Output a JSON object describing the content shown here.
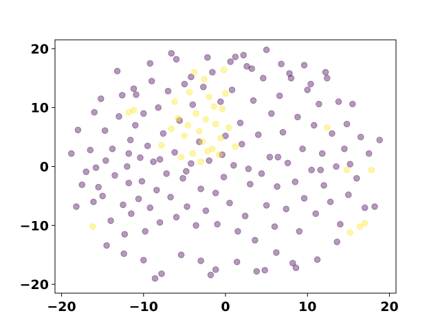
{
  "chart_data": {
    "type": "scatter",
    "title": "",
    "xlabel": "",
    "ylabel": "",
    "xlim": [
      -20.8,
      20.8
    ],
    "ylim": [
      -21.5,
      21.5
    ],
    "xticks": [
      -20,
      -10,
      0,
      10,
      20
    ],
    "yticks": [
      -20,
      -10,
      0,
      10,
      20
    ],
    "xtick_labels": [
      "−20",
      "−10",
      "0",
      "10",
      "20"
    ],
    "ytick_labels": [
      "−20",
      "−10",
      "0",
      "10",
      "20"
    ],
    "grid": false,
    "legend": "none",
    "marker_alpha": 0.4,
    "colors": {
      "class_0": "#440154",
      "class_1": "#fde725"
    },
    "series": [
      {
        "color_key": "class_0",
        "x": [
          -18.8,
          -18.2,
          -18.0,
          -17.5,
          -17.0,
          -16.5,
          -16.1,
          -16.0,
          -15.5,
          -15.2,
          -15.0,
          -14.7,
          -14.6,
          -14.0,
          -13.8,
          -13.5,
          -13.0,
          -12.6,
          -12.5,
          -12.3,
          -12.0,
          -11.8,
          -11.6,
          -11.5,
          -11.0,
          -10.9,
          -10.6,
          -10.4,
          -10.2,
          -10.0,
          -9.8,
          -9.5,
          -9.2,
          -9.0,
          -8.8,
          -8.4,
          -8.2,
          -8.0,
          -7.6,
          -7.2,
          -7.0,
          -6.7,
          -6.2,
          -6.0,
          -5.6,
          -5.2,
          -5.0,
          -4.7,
          -4.2,
          -4.0,
          -3.6,
          -3.2,
          -3.0,
          -2.7,
          -2.4,
          -2.0,
          -1.6,
          -1.2,
          -1.0,
          -0.6,
          -0.2,
          0.0,
          0.5,
          0.8,
          1.0,
          1.5,
          1.8,
          2.0,
          2.4,
          2.6,
          3.0,
          3.4,
          3.6,
          4.0,
          4.4,
          4.6,
          5.0,
          5.4,
          5.6,
          6.0,
          6.3,
          6.6,
          7.0,
          7.4,
          7.6,
          8.0,
          8.5,
          8.8,
          9.0,
          9.4,
          9.6,
          10.0,
          10.5,
          10.8,
          11.0,
          11.4,
          11.8,
          12.0,
          12.4,
          12.8,
          13.0,
          13.5,
          13.8,
          14.0,
          14.5,
          14.8,
          15.0,
          15.5,
          16.0,
          16.5,
          17.0,
          17.5,
          18.2,
          18.8,
          -14.5,
          -12.4,
          -10.0,
          -7.8,
          -5.4,
          -3.0,
          -1.2,
          1.4,
          3.8,
          6.2,
          8.6,
          11.2,
          13.6,
          -13.2,
          -9.2,
          -6.0,
          -2.2,
          2.2,
          5.0,
          9.6,
          12.2,
          -11.2,
          -4.2,
          0.6,
          3.2,
          7.8,
          10.4,
          -8.6,
          -1.8,
          4.8,
          8.2,
          -6.6,
          1.2,
          6.8,
          -15.8,
          -11.8,
          -8.0,
          -4.8,
          -0.4,
          2.8,
          6.4,
          11.6,
          15.2
        ],
        "y": [
          2.2,
          -6.8,
          6.2,
          -3.1,
          -0.9,
          2.8,
          -6.0,
          9.2,
          -3.5,
          11.5,
          -5.0,
          6.1,
          1.0,
          -9.2,
          3.0,
          -1.5,
          8.5,
          12.1,
          -6.5,
          -11.5,
          0.0,
          -2.8,
          4.5,
          -8.0,
          7.0,
          12.2,
          -5.5,
          1.5,
          -2.5,
          9.0,
          -11.0,
          3.5,
          -7.0,
          14.5,
          0.8,
          -4.0,
          10.0,
          -9.5,
          5.6,
          -1.2,
          12.8,
          -5.2,
          2.4,
          -8.6,
          7.8,
          -2.0,
          14.0,
          -6.8,
          0.5,
          10.5,
          -10.0,
          4.2,
          -3.8,
          13.5,
          -7.5,
          1.0,
          16.0,
          -4.5,
          -9.8,
          11.0,
          -1.8,
          5.2,
          -6.2,
          13.0,
          0.2,
          -11.0,
          7.4,
          3.8,
          -8.4,
          17.0,
          -3.0,
          11.2,
          -12.5,
          5.4,
          -1.2,
          15.0,
          -6.6,
          1.6,
          9.0,
          -10.2,
          -3.4,
          12.0,
          5.8,
          -7.2,
          0.6,
          15.0,
          -2.6,
          8.4,
          -11.0,
          3.0,
          -5.4,
          13.0,
          -0.6,
          7.0,
          -8.0,
          10.6,
          2.2,
          -3.2,
          15.0,
          -6.0,
          5.6,
          0.0,
          11.0,
          -9.8,
          3.0,
          7.2,
          -4.8,
          10.6,
          -2.0,
          5.0,
          -7.0,
          2.2,
          -6.8,
          4.5,
          -13.4,
          -14.8,
          -15.9,
          -18.2,
          -15.0,
          -16.0,
          -17.5,
          -16.2,
          -17.8,
          -14.6,
          -17.2,
          -15.8,
          -12.8,
          16.2,
          17.5,
          18.2,
          18.5,
          18.9,
          19.8,
          17.2,
          16.0,
          13.2,
          15.2,
          17.8,
          16.6,
          15.8,
          14.0,
          -19.0,
          -18.4,
          -17.6,
          -16.4,
          19.2,
          18.6,
          17.4,
          -0.2,
          2.2,
          1.2,
          -0.8,
          2.0,
          -0.4,
          1.6,
          -0.6,
          0.4
        ]
      },
      {
        "color_key": "class_1",
        "x": [
          -16.2,
          -11.8,
          -11.2,
          -7.8,
          -6.6,
          -5.8,
          -5.0,
          -4.6,
          -4.0,
          -3.6,
          -3.2,
          -2.8,
          -2.4,
          -2.0,
          -1.6,
          -1.2,
          -0.8,
          -0.4,
          0.0,
          -0.2,
          -3.8,
          -2.6,
          -1.4,
          -4.4,
          -6.2,
          -5.4,
          -3.0,
          -2.2,
          -0.6,
          0.4,
          1.2,
          12.4,
          14.8,
          15.2,
          16.4,
          17.0,
          17.8
        ],
        "y": [
          -10.2,
          9.2,
          9.6,
          3.6,
          6.4,
          8.2,
          5.2,
          7.0,
          2.2,
          9.0,
          6.0,
          4.2,
          8.0,
          11.8,
          3.0,
          7.2,
          2.0,
          9.8,
          12.4,
          16.4,
          16.0,
          14.8,
          10.2,
          12.6,
          11.0,
          1.6,
          0.8,
          2.6,
          4.8,
          6.6,
          3.4,
          6.6,
          -0.6,
          -11.2,
          -10.2,
          -9.6,
          -0.6
        ]
      }
    ]
  }
}
